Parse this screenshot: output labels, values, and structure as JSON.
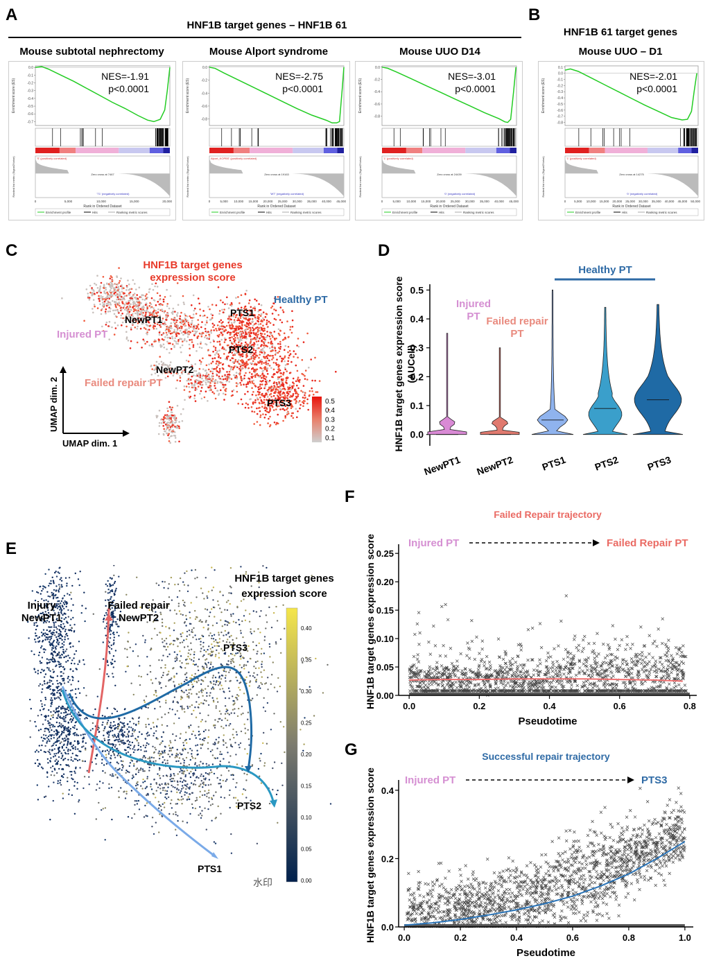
{
  "panels": {
    "a": {
      "letter": "A",
      "header": "HNF1B target genes – HNF1B 61",
      "plots": [
        {
          "title": "Mouse subtotal nephrectomy",
          "nes": "NES=-1.91",
          "p": "p<0.0001",
          "xticks": [
            "0",
            "5,000",
            "10,000",
            "15,000",
            "20,000"
          ],
          "pos_label": "'S' (positively correlated)",
          "neg_label": "'T1' (negatively correlated)",
          "zero_cross": "Zero cross at 7467"
        },
        {
          "title": "Mouse Alport syndrome",
          "nes": "NES=-2.75",
          "p": "p<0.0001",
          "xticks": [
            "0",
            "5,000",
            "10,000",
            "15,000",
            "20,000",
            "25,000",
            "30,000",
            "35,000",
            "40,000",
            "45,000"
          ],
          "pos_label": "Alport_KOPBS' (positively correlated)",
          "neg_label": "'WT' (negatively correlated)",
          "zero_cross": "Zero cross at 19163"
        },
        {
          "title": "Mouse UUO D14",
          "nes": "NES=-3.01",
          "p": "p<0.0001",
          "xticks": [
            "0",
            "5,000",
            "10,000",
            "15,000",
            "20,000",
            "25,000",
            "30,000",
            "35,000",
            "40,000",
            "45,000"
          ],
          "pos_label": "'1' (positively correlated)",
          "neg_label": "'0' (negatively correlated)",
          "zero_cross": "Zero cross at 24439"
        }
      ]
    },
    "b": {
      "letter": "B",
      "header1": "HNF1B 61 target genes",
      "header2": "Mouse UUO – D1",
      "plot": {
        "nes": "NES=-2.01",
        "p": "p<0.0001",
        "xticks": [
          "0",
          "5,000",
          "10,000",
          "15,000",
          "20,000",
          "25,000",
          "30,000",
          "35,000",
          "40,000",
          "45,000",
          "50,000"
        ],
        "pos_label": "'1' (positively correlated)",
        "neg_label": "'0' (negatively correlated)",
        "zero_cross": "Zero cross at 14275"
      }
    },
    "gsea_common": {
      "es_ylabel": "Enrichment score (ES)",
      "rank_ylabel": "Ranked list metric (Signal2Noise)",
      "xlabel": "Rank in Ordered Dataset",
      "legend": [
        "Enrichment profile",
        "Hits",
        "Ranking metric scores"
      ]
    },
    "c": {
      "letter": "C",
      "title": "HNF1B target genes\nexpression score",
      "healthy": "Healthy PT",
      "injured": "Injured PT",
      "failed": "Failed repair PT",
      "clusters": [
        "NewPT1",
        "PTS1",
        "PTS2",
        "NewPT2",
        "PTS3"
      ],
      "ax1": "UMAP dim. 1",
      "ax2": "UMAP dim. 2",
      "colorbar": [
        "0.5",
        "0.4",
        "0.3",
        "0.2",
        "0.1"
      ]
    },
    "d": {
      "letter": "D",
      "healthy": "Healthy PT",
      "injured": "Injured\nPT",
      "failed": "Failed repair\nPT",
      "ylabel": "HNF1B target genes expression score\n(AUCell)"
    },
    "e": {
      "letter": "E",
      "cb_title": "HNF1B target genes\nexpression score",
      "injury": "Injury\nNewPT1",
      "failed": "Failed repair\nNewPT2",
      "pts3": "PTS3",
      "pts2": "PTS2",
      "pts1": "PTS1",
      "colorbar": [
        "0.40",
        "0.35",
        "0.30",
        "0.25",
        "0.20",
        "0.15",
        "0.10",
        "0.05",
        "0.00"
      ],
      "watermark": "水印"
    },
    "f": {
      "letter": "F",
      "title": "Failed Repair trajectory",
      "from": "Injured PT",
      "to": "Failed Repair PT"
    },
    "g": {
      "letter": "G",
      "title": "Successful repair trajectory",
      "from": "Injured PT",
      "to": "PTS3"
    }
  },
  "chart_data": [
    {
      "panel": "A1",
      "type": "line",
      "ylabel": "Enrichment score (ES)",
      "xlabel": "Rank in Ordered Dataset",
      "ylim": [
        -0.75,
        0.02
      ],
      "yticks": [
        0.0,
        -0.1,
        -0.2,
        -0.3,
        -0.4,
        -0.5,
        -0.6,
        -0.7
      ],
      "xlim": [
        0,
        21000
      ],
      "series": [
        {
          "name": "Enrichment profile",
          "x": [
            0,
            1000,
            2000,
            4000,
            6000,
            8000,
            10000,
            12000,
            14000,
            16000,
            17500,
            18500,
            19500,
            20200,
            20600,
            21000
          ],
          "y": [
            0.0,
            0.01,
            -0.02,
            -0.1,
            -0.18,
            -0.27,
            -0.36,
            -0.45,
            -0.53,
            -0.62,
            -0.68,
            -0.7,
            -0.67,
            -0.55,
            -0.3,
            0.0
          ]
        }
      ],
      "color": "#22cc22"
    },
    {
      "panel": "A2",
      "type": "line",
      "ylabel": "Enrichment score (ES)",
      "xlabel": "Rank in Ordered Dataset",
      "ylim": [
        -0.9,
        0.02
      ],
      "yticks": [
        0.0,
        -0.2,
        -0.4,
        -0.6,
        -0.8
      ],
      "xlim": [
        0,
        46000
      ],
      "series": [
        {
          "name": "Enrichment profile",
          "x": [
            0,
            2000,
            5000,
            10000,
            15000,
            20000,
            25000,
            30000,
            35000,
            40000,
            42000,
            43500,
            44500,
            45500,
            46000
          ],
          "y": [
            0.0,
            -0.02,
            -0.09,
            -0.2,
            -0.31,
            -0.42,
            -0.53,
            -0.64,
            -0.74,
            -0.82,
            -0.86,
            -0.86,
            -0.84,
            -0.3,
            0.0
          ]
        }
      ],
      "color": "#22cc22"
    },
    {
      "panel": "A3",
      "type": "line",
      "ylabel": "Enrichment score (ES)",
      "xlabel": "Rank in Ordered Dataset",
      "ylim": [
        -0.95,
        0.02
      ],
      "yticks": [
        0.0,
        -0.2,
        -0.4,
        -0.6,
        -0.8
      ],
      "xlim": [
        0,
        46000
      ],
      "series": [
        {
          "name": "Enrichment profile",
          "x": [
            0,
            2000,
            5000,
            10000,
            15000,
            20000,
            25000,
            30000,
            35000,
            40000,
            42000,
            43000,
            44000,
            45000,
            45800
          ],
          "y": [
            0.0,
            -0.02,
            -0.08,
            -0.19,
            -0.3,
            -0.41,
            -0.52,
            -0.63,
            -0.74,
            -0.84,
            -0.89,
            -0.9,
            -0.85,
            -0.4,
            0.0
          ]
        }
      ],
      "color": "#22cc22"
    },
    {
      "panel": "B",
      "type": "line",
      "ylabel": "Enrichment score (ES)",
      "xlabel": "Rank in Ordered Dataset",
      "ylim": [
        -0.85,
        0.12
      ],
      "yticks": [
        0.1,
        0.0,
        -0.1,
        -0.2,
        -0.3,
        -0.4,
        -0.5,
        -0.6,
        -0.7,
        -0.8
      ],
      "xlim": [
        0,
        50000
      ],
      "series": [
        {
          "name": "Enrichment profile",
          "x": [
            0,
            2000,
            5000,
            10000,
            15000,
            20000,
            25000,
            30000,
            35000,
            40000,
            44000,
            46000,
            47500,
            48500,
            49500
          ],
          "y": [
            0.05,
            0.07,
            0.03,
            -0.08,
            -0.19,
            -0.3,
            -0.41,
            -0.52,
            -0.62,
            -0.72,
            -0.76,
            -0.75,
            -0.62,
            -0.3,
            0.0
          ]
        }
      ],
      "color": "#22cc22"
    },
    {
      "panel": "D",
      "type": "violin",
      "categories": [
        "NewPT1",
        "NewPT2",
        "PTS1",
        "PTS2",
        "PTS3"
      ],
      "yticks": [
        0.0,
        0.1,
        0.2,
        0.3,
        0.4,
        0.5
      ],
      "ylim": [
        -0.02,
        0.52
      ],
      "max": [
        0.35,
        0.3,
        0.5,
        0.44,
        0.45
      ],
      "median": [
        0.0,
        0.0,
        0.05,
        0.09,
        0.12
      ],
      "colors": [
        "#d98ad5",
        "#e07a6f",
        "#8fb3ee",
        "#3a9fcb",
        "#1f6aa5"
      ]
    },
    {
      "panel": "F",
      "type": "scatter",
      "xlabel": "Pseudotime",
      "ylabel": "HNF1B target genes expression score",
      "xlim": [
        -0.03,
        0.82
      ],
      "ylim": [
        0.0,
        0.26
      ],
      "xticks": [
        0.0,
        0.2,
        0.4,
        0.6,
        0.8
      ],
      "yticks": [
        0.0,
        0.05,
        0.1,
        0.15,
        0.2,
        0.25
      ],
      "trend": {
        "x": [
          0.0,
          0.1,
          0.2,
          0.3,
          0.4,
          0.5,
          0.6,
          0.7,
          0.78
        ],
        "y": [
          0.027,
          0.028,
          0.028,
          0.029,
          0.029,
          0.029,
          0.028,
          0.027,
          0.025
        ]
      },
      "trend_color": "#f07070"
    },
    {
      "panel": "G",
      "type": "scatter",
      "xlabel": "Pseudotime",
      "ylabel": "HNF1B target genes expression score",
      "xlim": [
        -0.02,
        1.03
      ],
      "ylim": [
        0.0,
        0.42
      ],
      "xticks": [
        0.0,
        0.2,
        0.4,
        0.6,
        0.8,
        1.0
      ],
      "yticks": [
        0.0,
        0.2,
        0.4
      ],
      "trend": {
        "x": [
          0.0,
          0.1,
          0.2,
          0.3,
          0.4,
          0.5,
          0.6,
          0.7,
          0.8,
          0.9,
          1.0
        ],
        "y": [
          0.005,
          0.012,
          0.022,
          0.035,
          0.05,
          0.068,
          0.09,
          0.12,
          0.155,
          0.2,
          0.25
        ]
      },
      "trend_color": "#2a74b8"
    }
  ]
}
